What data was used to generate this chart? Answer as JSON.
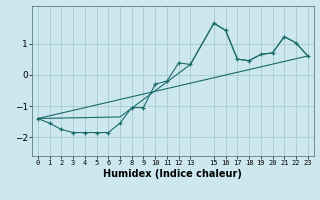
{
  "xlabel": "Humidex (Indice chaleur)",
  "bg_color": "#cce8ee",
  "grid_color": "#aacccc",
  "line_color": "#1a6b6b",
  "xlim": [
    -0.5,
    23.5
  ],
  "ylim": [
    -2.6,
    2.2
  ],
  "yticks": [
    -2,
    -1,
    0,
    1
  ],
  "xticks": [
    0,
    1,
    2,
    3,
    4,
    5,
    6,
    7,
    8,
    9,
    10,
    11,
    12,
    13,
    15,
    16,
    17,
    18,
    19,
    20,
    21,
    22,
    23
  ],
  "xtick_labels": [
    "0",
    "1",
    "2",
    "3",
    "4",
    "5",
    "6",
    "7",
    "8",
    "9",
    "10",
    "11",
    "12",
    "13",
    "15",
    "16",
    "17",
    "18",
    "19",
    "20",
    "21",
    "22",
    "23"
  ],
  "line1_x": [
    0,
    1,
    2,
    3,
    4,
    5,
    6,
    7,
    8,
    9,
    10,
    11,
    12,
    13,
    15,
    16,
    17,
    18,
    19,
    20,
    21,
    22,
    23
  ],
  "line1_y": [
    -1.4,
    -1.55,
    -1.75,
    -1.85,
    -1.85,
    -1.85,
    -1.85,
    -1.55,
    -1.05,
    -1.05,
    -0.3,
    -0.2,
    0.38,
    0.33,
    1.65,
    1.42,
    0.5,
    0.45,
    0.65,
    0.7,
    1.22,
    1.02,
    0.6
  ],
  "line2_x": [
    0,
    7,
    13,
    15,
    16,
    17,
    18,
    19,
    20,
    21,
    22,
    23
  ],
  "line2_y": [
    -1.4,
    -1.35,
    0.33,
    1.65,
    1.42,
    0.5,
    0.45,
    0.65,
    0.7,
    1.22,
    1.02,
    0.6
  ],
  "line3_x": [
    0,
    23
  ],
  "line3_y": [
    -1.4,
    0.6
  ]
}
